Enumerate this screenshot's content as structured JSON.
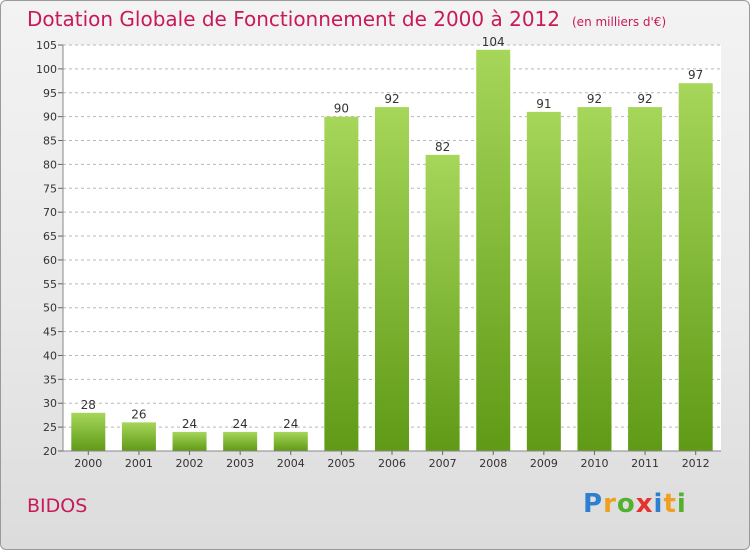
{
  "header": {
    "title": "Dotation Globale de Fonctionnement de 2000 à 2012",
    "unit_note": "(en milliers d'€)"
  },
  "footer": {
    "place": "BIDOS",
    "logo_text": "Proxiti"
  },
  "colors": {
    "title": "#c8195a",
    "bar_top": "#a6d65a",
    "bar_bottom": "#5f9a16",
    "grid": "#b8b8b8",
    "plot_bg": "#ffffff"
  },
  "chart_data": {
    "type": "bar",
    "categories": [
      "2000",
      "2001",
      "2002",
      "2003",
      "2004",
      "2005",
      "2006",
      "2007",
      "2008",
      "2009",
      "2010",
      "2011",
      "2012"
    ],
    "values": [
      28,
      26,
      24,
      24,
      24,
      90,
      92,
      82,
      104,
      91,
      92,
      92,
      97
    ],
    "title": "Dotation Globale de Fonctionnement de 2000 à 2012",
    "ylim": [
      20,
      105
    ],
    "yticks": [
      20,
      25,
      30,
      35,
      40,
      45,
      50,
      55,
      60,
      65,
      70,
      75,
      80,
      85,
      90,
      95,
      100,
      105
    ],
    "grid": true,
    "data_labels": true
  }
}
